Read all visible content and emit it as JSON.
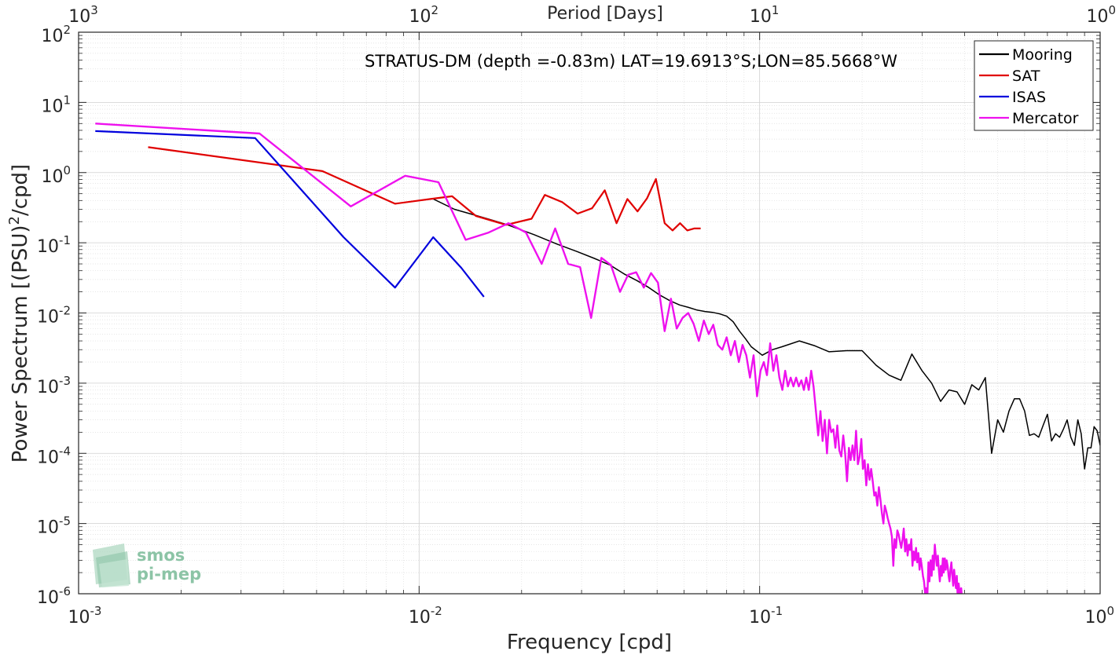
{
  "chart_data": {
    "type": "line",
    "title": "",
    "annotation": "STRATUS-DM (depth =-0.83m) LAT=19.6913°S;LON=85.5668°W",
    "xlabel": "Frequency [cpd]",
    "ylabel": "Power Spectrum [(PSU)²/cpd]",
    "x2label": "Period [Days]",
    "xscale": "log",
    "yscale": "log",
    "xlim": [
      0.001,
      1
    ],
    "ylim": [
      1e-06,
      100
    ],
    "grid": true,
    "legend_position": "top-right",
    "x_ticks": [
      {
        "base": "10",
        "exp": "-3"
      },
      {
        "base": "10",
        "exp": "-2"
      },
      {
        "base": "10",
        "exp": "-1"
      },
      {
        "base": "10",
        "exp": "0"
      }
    ],
    "x_ticks_values": [
      0.001,
      0.01,
      0.1,
      1
    ],
    "x2_ticks": [
      {
        "base": "10",
        "exp": "3"
      },
      {
        "base": "10",
        "exp": "2"
      },
      {
        "base": "10",
        "exp": "1"
      },
      {
        "base": "10",
        "exp": "0"
      }
    ],
    "y_ticks": [
      {
        "base": "10",
        "exp": "-6"
      },
      {
        "base": "10",
        "exp": "-5"
      },
      {
        "base": "10",
        "exp": "-4"
      },
      {
        "base": "10",
        "exp": "-3"
      },
      {
        "base": "10",
        "exp": "-2"
      },
      {
        "base": "10",
        "exp": "-1"
      },
      {
        "base": "10",
        "exp": "0"
      },
      {
        "base": "10",
        "exp": "1"
      },
      {
        "base": "10",
        "exp": "2"
      }
    ],
    "y_ticks_values": [
      1e-06,
      1e-05,
      0.0001,
      0.001,
      0.01,
      0.1,
      1,
      10,
      100
    ],
    "series": [
      {
        "name": "Mooring",
        "color": "#000000",
        "points": [
          [
            0.0109,
            0.43
          ],
          [
            0.0127,
            0.3
          ],
          [
            0.0145,
            0.25
          ],
          [
            0.0164,
            0.21
          ],
          [
            0.0182,
            0.18
          ],
          [
            0.0218,
            0.13
          ],
          [
            0.0255,
            0.095
          ],
          [
            0.0291,
            0.075
          ],
          [
            0.0327,
            0.06
          ],
          [
            0.0364,
            0.048
          ],
          [
            0.04,
            0.036
          ],
          [
            0.0436,
            0.029
          ],
          [
            0.0473,
            0.023
          ],
          [
            0.0509,
            0.018
          ],
          [
            0.0545,
            0.015
          ],
          [
            0.0582,
            0.013
          ],
          [
            0.0618,
            0.012
          ],
          [
            0.0655,
            0.011
          ],
          [
            0.0691,
            0.0105
          ],
          [
            0.0727,
            0.0102
          ],
          [
            0.0764,
            0.0097
          ],
          [
            0.08,
            0.009
          ],
          [
            0.0836,
            0.0075
          ],
          [
            0.0873,
            0.0055
          ],
          [
            0.0909,
            0.0043
          ],
          [
            0.0945,
            0.0033
          ],
          [
            0.1018,
            0.0025
          ],
          [
            0.1091,
            0.003
          ],
          [
            0.1164,
            0.0033
          ],
          [
            0.1309,
            0.004
          ],
          [
            0.1455,
            0.0034
          ],
          [
            0.16,
            0.0028
          ],
          [
            0.18,
            0.0029
          ],
          [
            0.2,
            0.0029
          ],
          [
            0.22,
            0.0018
          ],
          [
            0.24,
            0.0013
          ],
          [
            0.26,
            0.0011
          ],
          [
            0.28,
            0.0026
          ],
          [
            0.3,
            0.0015
          ],
          [
            0.32,
            0.001
          ],
          [
            0.34,
            0.00055
          ],
          [
            0.36,
            0.0008
          ],
          [
            0.38,
            0.00075
          ],
          [
            0.4,
            0.0005
          ],
          [
            0.42,
            0.00095
          ],
          [
            0.44,
            0.0008
          ],
          [
            0.46,
            0.0012
          ],
          [
            0.48,
            0.0001
          ],
          [
            0.5,
            0.0003
          ],
          [
            0.52,
            0.0002
          ],
          [
            0.54,
            0.0004
          ],
          [
            0.56,
            0.0006
          ],
          [
            0.58,
            0.0006
          ],
          [
            0.6,
            0.0004
          ],
          [
            0.62,
            0.00018
          ],
          [
            0.64,
            0.00019
          ],
          [
            0.66,
            0.00017
          ],
          [
            0.68,
            0.00025
          ],
          [
            0.7,
            0.00036
          ],
          [
            0.72,
            0.00015
          ],
          [
            0.74,
            0.00019
          ],
          [
            0.76,
            0.00017
          ],
          [
            0.78,
            0.00022
          ],
          [
            0.8,
            0.0003
          ],
          [
            0.82,
            0.00017
          ],
          [
            0.84,
            0.00013
          ],
          [
            0.86,
            0.0003
          ],
          [
            0.88,
            0.00019
          ],
          [
            0.9,
            6e-05
          ],
          [
            0.92,
            0.00012
          ],
          [
            0.94,
            0.00012
          ],
          [
            0.96,
            0.00024
          ],
          [
            0.98,
            0.00021
          ],
          [
            1.0,
            0.00013
          ]
        ]
      },
      {
        "name": "SAT",
        "color": "#e00000",
        "points": [
          [
            0.0016,
            2.3
          ],
          [
            0.0052,
            1.05
          ],
          [
            0.0085,
            0.36
          ],
          [
            0.0108,
            0.42
          ],
          [
            0.0125,
            0.46
          ],
          [
            0.0147,
            0.24
          ],
          [
            0.018,
            0.18
          ],
          [
            0.0214,
            0.22
          ],
          [
            0.0234,
            0.48
          ],
          [
            0.0263,
            0.38
          ],
          [
            0.0292,
            0.26
          ],
          [
            0.0322,
            0.31
          ],
          [
            0.0351,
            0.56
          ],
          [
            0.038,
            0.19
          ],
          [
            0.0409,
            0.42
          ],
          [
            0.0438,
            0.28
          ],
          [
            0.0467,
            0.43
          ],
          [
            0.0496,
            0.81
          ],
          [
            0.0526,
            0.19
          ],
          [
            0.0555,
            0.15
          ],
          [
            0.0584,
            0.19
          ],
          [
            0.0613,
            0.15
          ],
          [
            0.0642,
            0.16
          ],
          [
            0.0671,
            0.16
          ]
        ]
      },
      {
        "name": "ISAS",
        "color": "#0000dd",
        "points": [
          [
            0.00112,
            3.9
          ],
          [
            0.0033,
            3.1
          ],
          [
            0.006,
            0.12
          ],
          [
            0.0085,
            0.023
          ],
          [
            0.011,
            0.12
          ],
          [
            0.0133,
            0.044
          ],
          [
            0.0155,
            0.017
          ]
        ]
      },
      {
        "name": "Mercator",
        "color": "#ee11ee",
        "points": [
          [
            0.00112,
            5.0
          ],
          [
            0.0034,
            3.6
          ],
          [
            0.0063,
            0.33
          ],
          [
            0.0091,
            0.9
          ],
          [
            0.0114,
            0.73
          ],
          [
            0.0137,
            0.11
          ],
          [
            0.016,
            0.14
          ],
          [
            0.0183,
            0.19
          ],
          [
            0.0206,
            0.14
          ],
          [
            0.0229,
            0.05
          ],
          [
            0.0251,
            0.16
          ],
          [
            0.0274,
            0.05
          ],
          [
            0.0297,
            0.045
          ],
          [
            0.032,
            0.0085
          ],
          [
            0.0343,
            0.061
          ],
          [
            0.0366,
            0.048
          ],
          [
            0.0389,
            0.02
          ],
          [
            0.0411,
            0.035
          ],
          [
            0.0434,
            0.038
          ],
          [
            0.0457,
            0.023
          ],
          [
            0.048,
            0.037
          ],
          [
            0.0503,
            0.027
          ],
          [
            0.0526,
            0.0055
          ],
          [
            0.0549,
            0.016
          ],
          [
            0.0571,
            0.006
          ],
          [
            0.0594,
            0.0085
          ],
          [
            0.0617,
            0.01
          ],
          [
            0.064,
            0.007
          ],
          [
            0.0663,
            0.004
          ],
          [
            0.0686,
            0.0078
          ],
          [
            0.0709,
            0.005
          ],
          [
            0.0731,
            0.0068
          ],
          [
            0.0754,
            0.0035
          ],
          [
            0.0777,
            0.003
          ],
          [
            0.08,
            0.0045
          ],
          [
            0.0823,
            0.0025
          ],
          [
            0.0846,
            0.004
          ],
          [
            0.0869,
            0.002
          ],
          [
            0.0891,
            0.0035
          ],
          [
            0.0914,
            0.0025
          ],
          [
            0.0937,
            0.0012
          ],
          [
            0.096,
            0.0025
          ],
          [
            0.0983,
            0.00065
          ],
          [
            0.1006,
            0.0015
          ],
          [
            0.1029,
            0.002
          ],
          [
            0.1051,
            0.0013
          ],
          [
            0.1074,
            0.0037
          ],
          [
            0.1097,
            0.0015
          ],
          [
            0.112,
            0.0025
          ],
          [
            0.1143,
            0.0012
          ],
          [
            0.1166,
            0.0008
          ],
          [
            0.1189,
            0.0015
          ],
          [
            0.1211,
            0.0009
          ],
          [
            0.1234,
            0.0012
          ],
          [
            0.1257,
            0.0009
          ],
          [
            0.128,
            0.0012
          ],
          [
            0.1303,
            0.0009
          ],
          [
            0.1326,
            0.0011
          ],
          [
            0.1349,
            0.0008
          ],
          [
            0.1371,
            0.0012
          ],
          [
            0.1394,
            0.0008
          ],
          [
            0.1417,
            0.0015
          ],
          [
            0.144,
            0.0009
          ],
          [
            0.1463,
            0.0004
          ],
          [
            0.1486,
            0.00018
          ],
          [
            0.1509,
            0.0004
          ],
          [
            0.1531,
            0.00015
          ],
          [
            0.1554,
            0.0003
          ],
          [
            0.1577,
            0.0001
          ],
          [
            0.16,
            0.0003
          ],
          [
            0.1623,
            0.0002
          ],
          [
            0.1646,
            0.00022
          ],
          [
            0.1669,
            0.00012
          ],
          [
            0.1691,
            0.00025
          ],
          [
            0.1714,
            0.00011
          ],
          [
            0.1737,
            9e-05
          ],
          [
            0.176,
            0.00018
          ],
          [
            0.1783,
            0.0001
          ],
          [
            0.1806,
            4e-05
          ],
          [
            0.1829,
            0.00012
          ],
          [
            0.1851,
            8e-05
          ],
          [
            0.1874,
            0.00013
          ],
          [
            0.1897,
            8e-05
          ],
          [
            0.192,
            0.00021
          ],
          [
            0.1943,
            7e-05
          ],
          [
            0.1966,
            9e-05
          ],
          [
            0.1989,
            0.00016
          ],
          [
            0.2011,
            6e-05
          ],
          [
            0.2034,
            8e-05
          ],
          [
            0.2057,
            3.5e-05
          ],
          [
            0.208,
            7e-05
          ],
          [
            0.2103,
            4.2e-05
          ],
          [
            0.2126,
            6e-05
          ],
          [
            0.2149,
            4e-05
          ],
          [
            0.2171,
            2.5e-05
          ],
          [
            0.2194,
            2.8e-05
          ],
          [
            0.2217,
            1.8e-05
          ],
          [
            0.224,
            3.3e-05
          ],
          [
            0.2263,
            2.2e-05
          ],
          [
            0.2286,
            1.4e-05
          ],
          [
            0.2309,
            1e-05
          ],
          [
            0.2331,
            1.8e-05
          ],
          [
            0.2354,
            1.5e-05
          ],
          [
            0.2377,
            1.2e-05
          ],
          [
            0.24,
            1e-05
          ],
          [
            0.2423,
            8.5e-06
          ],
          [
            0.2446,
            6.5e-06
          ],
          [
            0.2469,
            2.5e-06
          ],
          [
            0.2491,
            6e-06
          ],
          [
            0.2514,
            4.5e-06
          ],
          [
            0.2537,
            8e-06
          ],
          [
            0.256,
            7e-06
          ],
          [
            0.2583,
            5.5e-06
          ],
          [
            0.2606,
            4.5e-06
          ],
          [
            0.2629,
            6e-06
          ],
          [
            0.2651,
            8.5e-06
          ],
          [
            0.2674,
            4e-06
          ],
          [
            0.2697,
            6e-06
          ],
          [
            0.272,
            3.5e-06
          ],
          [
            0.2743,
            5e-06
          ],
          [
            0.2766,
            4.2e-06
          ],
          [
            0.2789,
            6e-06
          ],
          [
            0.2811,
            2.5e-06
          ],
          [
            0.2834,
            4e-06
          ],
          [
            0.2857,
            3e-06
          ],
          [
            0.288,
            4.5e-06
          ],
          [
            0.2903,
            2.8e-06
          ],
          [
            0.2926,
            3.8e-06
          ],
          [
            0.2949,
            2.2e-06
          ],
          [
            0.2971,
            3.2e-06
          ],
          [
            0.2994,
            2.5e-06
          ],
          [
            0.3017,
            1.8e-06
          ],
          [
            0.304,
            1.5e-06
          ],
          [
            0.3063,
            1e-06
          ],
          [
            0.3086,
            1.2e-06
          ],
          [
            0.3109,
            9e-07
          ],
          [
            0.3131,
            2.8e-06
          ],
          [
            0.3154,
            1.5e-06
          ],
          [
            0.3177,
            3e-06
          ],
          [
            0.32,
            1.8e-06
          ],
          [
            0.3223,
            3.5e-06
          ],
          [
            0.3246,
            2.2e-06
          ],
          [
            0.3269,
            5e-06
          ],
          [
            0.3291,
            3.5e-06
          ],
          [
            0.3314,
            2.5e-06
          ],
          [
            0.3337,
            3.5e-06
          ],
          [
            0.336,
            2.2e-06
          ],
          [
            0.3383,
            1.5e-06
          ],
          [
            0.3406,
            2.5e-06
          ],
          [
            0.3429,
            1.8e-06
          ],
          [
            0.3451,
            3.2e-06
          ],
          [
            0.3474,
            2e-06
          ],
          [
            0.3497,
            3.2e-06
          ],
          [
            0.352,
            2.2e-06
          ],
          [
            0.3543,
            3e-06
          ],
          [
            0.3566,
            2.5e-06
          ],
          [
            0.3589,
            1.8e-06
          ],
          [
            0.3611,
            1.5e-06
          ],
          [
            0.3634,
            2.2e-06
          ],
          [
            0.3657,
            2.8e-06
          ],
          [
            0.368,
            1.8e-06
          ],
          [
            0.3703,
            1.3e-06
          ],
          [
            0.3726,
            2.2e-06
          ],
          [
            0.3749,
            1.5e-06
          ],
          [
            0.3771,
            1.2e-06
          ],
          [
            0.3794,
            1.8e-06
          ],
          [
            0.3817,
            9e-07
          ],
          [
            0.384,
            1.4e-06
          ],
          [
            0.3863,
            1.1e-06
          ],
          [
            0.3886,
            9e-07
          ],
          [
            0.3909,
            1.2e-06
          ],
          [
            0.3931,
            8e-07
          ]
        ]
      }
    ]
  },
  "logo": {
    "line1": "smos",
    "line2": "pi-mep",
    "color": "#8cc4a6"
  }
}
